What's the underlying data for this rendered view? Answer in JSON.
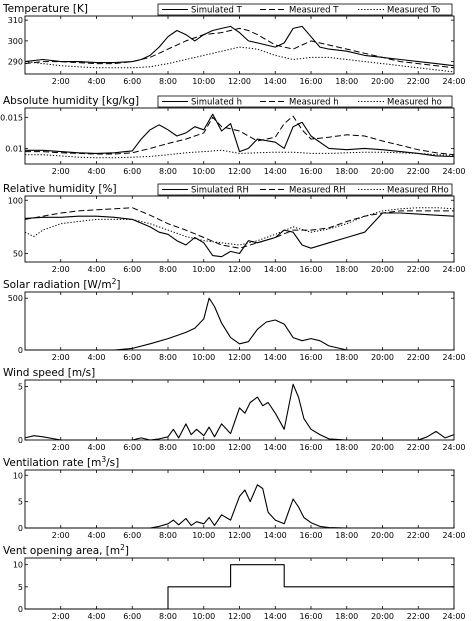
{
  "chart_data": [
    {
      "type": "line",
      "title": "Temperature [K]",
      "title_sup": "",
      "xlabel": "",
      "ylabel": "",
      "xlim": [
        0,
        24
      ],
      "ylim": [
        284,
        312
      ],
      "yticks": [
        290,
        300,
        310
      ],
      "xticks": [
        2,
        4,
        6,
        8,
        10,
        12,
        14,
        16,
        18,
        20,
        22,
        24
      ],
      "xtick_labels": [
        "2:00",
        "4:00",
        "6:00",
        "8:00",
        "10:00",
        "12:00",
        "14:00",
        "16:00",
        "18:00",
        "20:00",
        "22:00",
        "24:00"
      ],
      "show_xtick_labels": true,
      "legend": "top-right",
      "series": [
        {
          "name": "Simulated T",
          "style": "solid",
          "color": "#000000",
          "x": [
            0,
            1,
            2,
            3,
            4,
            5,
            6,
            6.5,
            7,
            7.5,
            8,
            8.5,
            9,
            9.5,
            10,
            10.5,
            11,
            11.5,
            12,
            12.5,
            13,
            13.5,
            14,
            14.5,
            15,
            15.5,
            16,
            16.5,
            17,
            18,
            19,
            20,
            21,
            22,
            23,
            24
          ],
          "y": [
            290,
            291,
            290,
            290,
            289.5,
            289.5,
            290,
            291,
            293,
            297,
            302,
            305,
            303,
            300,
            303,
            305,
            306,
            307,
            304,
            300,
            299,
            298,
            297,
            299,
            306,
            307,
            302,
            297,
            296,
            295,
            293,
            292,
            291,
            290,
            289,
            288
          ]
        },
        {
          "name": "Measured T",
          "style": "dashed",
          "color": "#000000",
          "x": [
            0,
            1,
            2,
            3,
            4,
            5,
            6,
            7,
            8,
            9,
            10,
            11,
            12,
            12.5,
            13,
            14,
            15,
            15.5,
            16,
            17,
            18,
            19,
            20,
            21,
            22,
            23,
            24
          ],
          "y": [
            289,
            290,
            290,
            289.5,
            289,
            289,
            290,
            292,
            296,
            300,
            303,
            304,
            306,
            305,
            303,
            298,
            296,
            298,
            300,
            298,
            296,
            294,
            292,
            290,
            289,
            288,
            287
          ]
        },
        {
          "name": "Measured To",
          "style": "dotted",
          "color": "#000000",
          "x": [
            0,
            1,
            2,
            3,
            4,
            5,
            6,
            7,
            8,
            9,
            10,
            11,
            12,
            13,
            14,
            15,
            16,
            17,
            18,
            19,
            20,
            21,
            22,
            23,
            24
          ],
          "y": [
            290,
            289,
            288,
            287.5,
            287,
            287,
            287,
            287.5,
            289,
            291,
            293,
            295,
            297,
            296,
            293,
            291,
            292,
            292,
            291,
            290,
            289,
            288,
            287,
            286,
            285
          ]
        }
      ]
    },
    {
      "type": "line",
      "title": "Absolute humidity [kg/kg]",
      "title_sup": "",
      "xlabel": "",
      "ylabel": "",
      "xlim": [
        0,
        24
      ],
      "ylim": [
        0.0075,
        0.0165
      ],
      "yticks": [
        0.01,
        0.015
      ],
      "ytick_labels": [
        "0.01",
        "0.015"
      ],
      "xticks": [
        2,
        4,
        6,
        8,
        10,
        12,
        14,
        16,
        18,
        20,
        22,
        24
      ],
      "xtick_labels": [
        "2:00",
        "4:00",
        "6:00",
        "8:00",
        "10:00",
        "12:00",
        "14:00",
        "16:00",
        "18:00",
        "20:00",
        "22:00",
        "24:00"
      ],
      "show_xtick_labels": true,
      "legend": "top-right",
      "series": [
        {
          "name": "Simulated h",
          "style": "solid",
          "color": "#000000",
          "x": [
            0,
            1,
            2,
            3,
            4,
            5,
            6,
            6.5,
            7,
            7.5,
            8,
            8.5,
            9,
            9.5,
            10,
            10.5,
            11,
            11.5,
            12,
            12.5,
            13,
            14,
            14.5,
            15,
            15.5,
            16,
            17,
            18,
            19,
            20,
            21,
            22,
            23,
            24
          ],
          "y": [
            0.0097,
            0.0097,
            0.0095,
            0.0093,
            0.0092,
            0.0093,
            0.0096,
            0.0115,
            0.013,
            0.0138,
            0.013,
            0.012,
            0.0125,
            0.0135,
            0.013,
            0.0155,
            0.0128,
            0.014,
            0.0095,
            0.01,
            0.0115,
            0.011,
            0.01,
            0.0135,
            0.0142,
            0.012,
            0.01,
            0.0098,
            0.01,
            0.0098,
            0.0095,
            0.0092,
            0.0088,
            0.0087
          ]
        },
        {
          "name": "Measured h",
          "style": "dashed",
          "color": "#000000",
          "x": [
            0,
            1,
            2,
            3,
            4,
            5,
            6,
            7,
            8,
            9,
            10,
            10.5,
            11,
            12,
            13,
            14,
            14.5,
            15,
            15.5,
            16,
            17,
            18,
            19,
            20,
            21,
            22,
            23,
            24
          ],
          "y": [
            0.0095,
            0.0095,
            0.0093,
            0.0092,
            0.0091,
            0.0091,
            0.0093,
            0.01,
            0.0108,
            0.0115,
            0.0125,
            0.015,
            0.0135,
            0.0128,
            0.0112,
            0.0118,
            0.014,
            0.0152,
            0.013,
            0.0115,
            0.0118,
            0.0122,
            0.012,
            0.0112,
            0.0105,
            0.0098,
            0.0093,
            0.009
          ]
        },
        {
          "name": "Measured ho",
          "style": "dotted",
          "color": "#000000",
          "x": [
            0,
            1,
            2,
            3,
            4,
            5,
            6,
            7,
            8,
            9,
            10,
            11,
            12,
            13,
            14,
            15,
            16,
            17,
            18,
            19,
            20,
            21,
            22,
            23,
            24
          ],
          "y": [
            0.009,
            0.009,
            0.0088,
            0.0086,
            0.0085,
            0.0085,
            0.0086,
            0.0087,
            0.009,
            0.0093,
            0.0095,
            0.0097,
            0.0092,
            0.0093,
            0.0094,
            0.0094,
            0.0092,
            0.0092,
            0.0093,
            0.0094,
            0.0094,
            0.0093,
            0.0092,
            0.009,
            0.0089
          ]
        }
      ]
    },
    {
      "type": "line",
      "title": "Relative humidity [%]",
      "title_sup": "",
      "xlabel": "",
      "ylabel": "",
      "xlim": [
        0,
        24
      ],
      "ylim": [
        42,
        104
      ],
      "yticks": [
        50,
        100
      ],
      "xticks": [
        2,
        4,
        6,
        8,
        10,
        12,
        14,
        16,
        18,
        20,
        22,
        24
      ],
      "xtick_labels": [
        "2:00",
        "4:00",
        "6:00",
        "8:00",
        "10:00",
        "12:00",
        "14:00",
        "16:00",
        "18:00",
        "20:00",
        "22:00",
        "24:00"
      ],
      "show_xtick_labels": true,
      "legend": "top-right",
      "series": [
        {
          "name": "Simulated RH",
          "style": "solid",
          "color": "#000000",
          "x": [
            0,
            1,
            2,
            3,
            4,
            5,
            6,
            7,
            7.5,
            8,
            8.5,
            9,
            9.5,
            10,
            10.5,
            11,
            11.5,
            12,
            12.5,
            13,
            14,
            14.5,
            15,
            15.5,
            16,
            17,
            18,
            19,
            20,
            21,
            22,
            23,
            24
          ],
          "y": [
            83,
            84,
            84,
            85,
            85,
            84,
            82,
            75,
            70,
            68,
            62,
            58,
            65,
            60,
            48,
            47,
            52,
            50,
            62,
            60,
            65,
            72,
            70,
            58,
            55,
            60,
            65,
            70,
            88,
            88,
            87,
            86,
            85
          ]
        },
        {
          "name": "Measured RH",
          "style": "dashed",
          "color": "#000000",
          "x": [
            0,
            1,
            2,
            3,
            4,
            5,
            6,
            7,
            8,
            9,
            10,
            11,
            12,
            13,
            14,
            15,
            16,
            17,
            18,
            19,
            20,
            21,
            22,
            23,
            24
          ],
          "y": [
            82,
            85,
            88,
            90,
            91,
            92,
            93,
            86,
            78,
            72,
            65,
            58,
            55,
            60,
            65,
            72,
            72,
            74,
            80,
            85,
            88,
            90,
            90,
            90,
            90
          ]
        },
        {
          "name": "Measured RHo",
          "style": "dotted",
          "color": "#000000",
          "x": [
            0,
            0.5,
            1,
            2,
            3,
            4,
            5,
            6,
            7,
            8,
            9,
            10,
            11,
            12,
            13,
            14,
            15,
            16,
            17,
            18,
            19,
            20,
            21,
            22,
            23,
            24
          ],
          "y": [
            70,
            66,
            72,
            78,
            80,
            82,
            82,
            82,
            78,
            72,
            66,
            62,
            60,
            58,
            62,
            68,
            75,
            70,
            73,
            78,
            85,
            90,
            92,
            93,
            93,
            92
          ]
        }
      ]
    },
    {
      "type": "line",
      "title": "Solar radiation [W/m",
      "title_sup": "2",
      "title_tail": "]",
      "xlabel": "",
      "ylabel": "",
      "xlim": [
        0,
        24
      ],
      "ylim": [
        0,
        560
      ],
      "yticks": [
        0,
        500
      ],
      "xticks": [
        2,
        4,
        6,
        8,
        10,
        12,
        14,
        16,
        18,
        20,
        22,
        24
      ],
      "xtick_labels": [
        "2:00",
        "4:00",
        "6:00",
        "8:00",
        "10:00",
        "12:00",
        "14:00",
        "16:00",
        "18:00",
        "20:00",
        "22:00",
        "24:00"
      ],
      "show_xtick_labels": true,
      "series": [
        {
          "name": "",
          "style": "solid",
          "color": "#000000",
          "x": [
            0,
            4,
            5,
            6,
            7,
            8,
            9,
            9.5,
            10,
            10.3,
            10.6,
            11,
            11.5,
            12,
            12.5,
            13,
            13.5,
            14,
            14.5,
            15,
            15.5,
            16,
            16.5,
            17,
            18,
            24
          ],
          "y": [
            0,
            0,
            0,
            15,
            60,
            110,
            170,
            210,
            300,
            500,
            420,
            260,
            120,
            60,
            80,
            200,
            270,
            290,
            250,
            120,
            90,
            110,
            90,
            40,
            0,
            0
          ]
        }
      ]
    },
    {
      "type": "line",
      "title": "Wind speed [m/s]",
      "title_sup": "",
      "xlabel": "",
      "ylabel": "",
      "xlim": [
        0,
        24
      ],
      "ylim": [
        0,
        5.6
      ],
      "yticks": [
        0,
        5
      ],
      "xticks": [
        2,
        4,
        6,
        8,
        10,
        12,
        14,
        16,
        18,
        20,
        22,
        24
      ],
      "xtick_labels": [
        "2:00",
        "4:00",
        "6:00",
        "8:00",
        "10:00",
        "12:00",
        "14:00",
        "16:00",
        "18:00",
        "20:00",
        "22:00",
        "24:00"
      ],
      "show_xtick_labels": true,
      "series": [
        {
          "name": "",
          "style": "solid",
          "color": "#000000",
          "x": [
            0,
            0.5,
            1,
            2,
            6,
            6.5,
            7,
            7.5,
            8,
            8.3,
            8.6,
            9,
            9.3,
            9.6,
            10,
            10.3,
            10.6,
            11,
            11.5,
            12,
            12.3,
            12.6,
            13,
            13.3,
            13.6,
            14,
            14.5,
            15,
            15.3,
            15.6,
            16,
            16.5,
            17,
            18,
            22,
            22.5,
            23,
            23.5,
            24
          ],
          "y": [
            0.2,
            0.4,
            0.3,
            0,
            0,
            0.2,
            0,
            0.1,
            0.3,
            1.0,
            0.2,
            1.5,
            0.5,
            1.0,
            0.4,
            1.2,
            0.3,
            1.5,
            0.6,
            3.0,
            2.5,
            3.5,
            4.0,
            3.2,
            3.5,
            2.5,
            1.0,
            5.2,
            4.0,
            2.0,
            1.0,
            0.5,
            0.1,
            0,
            0,
            0.3,
            0.8,
            0.2,
            0.5
          ]
        }
      ]
    },
    {
      "type": "line",
      "title": "Ventilation rate [m",
      "title_sup": "3",
      "title_tail": "/s]",
      "xlabel": "",
      "ylabel": "",
      "xlim": [
        0,
        24
      ],
      "ylim": [
        0,
        11
      ],
      "yticks": [
        0,
        5,
        10
      ],
      "xticks": [
        2,
        4,
        6,
        8,
        10,
        12,
        14,
        16,
        18,
        20,
        22,
        24
      ],
      "xtick_labels": [
        "2:00",
        "4:00",
        "6:00",
        "8:00",
        "10:00",
        "12:00",
        "14:00",
        "16:00",
        "18:00",
        "20:00",
        "22:00",
        "24:00"
      ],
      "show_xtick_labels": true,
      "series": [
        {
          "name": "",
          "style": "solid",
          "color": "#000000",
          "x": [
            0,
            7,
            7.5,
            8,
            8.3,
            8.6,
            9,
            9.3,
            9.6,
            10,
            10.3,
            10.6,
            11,
            11.5,
            12,
            12.3,
            12.6,
            13,
            13.3,
            13.6,
            14,
            14.5,
            15,
            15.3,
            15.6,
            16,
            16.5,
            17,
            18,
            24
          ],
          "y": [
            0,
            0,
            0.3,
            0.8,
            1.5,
            0.6,
            1.8,
            0.5,
            1.2,
            0.8,
            2.0,
            0.5,
            2.5,
            1.5,
            6.0,
            7.2,
            5.0,
            8.2,
            7.5,
            3.0,
            1.5,
            0.8,
            5.5,
            4.0,
            2.0,
            1.0,
            0.3,
            0.1,
            0,
            0
          ]
        }
      ]
    },
    {
      "type": "line",
      "title": "Vent opening area, [m",
      "title_sup": "2",
      "title_tail": "]",
      "xlabel": "",
      "ylabel": "",
      "xlim": [
        0,
        24
      ],
      "ylim": [
        0,
        11.5
      ],
      "yticks": [
        0,
        5,
        10
      ],
      "xticks": [
        2,
        4,
        6,
        8,
        10,
        12,
        14,
        16,
        18,
        20,
        22,
        24
      ],
      "xtick_labels": [
        "2:00",
        "4:00",
        "6:00",
        "8:00",
        "10:00",
        "12:00",
        "14:00",
        "16:00",
        "18:00",
        "20:00",
        "22:00",
        "24:00"
      ],
      "show_xtick_labels": true,
      "series": [
        {
          "name": "",
          "style": "solid",
          "color": "#000000",
          "x": [
            0,
            8,
            8,
            11.5,
            11.5,
            14.5,
            14.5,
            24
          ],
          "y": [
            0,
            0,
            5,
            5,
            10,
            10,
            5,
            5
          ]
        }
      ]
    }
  ]
}
